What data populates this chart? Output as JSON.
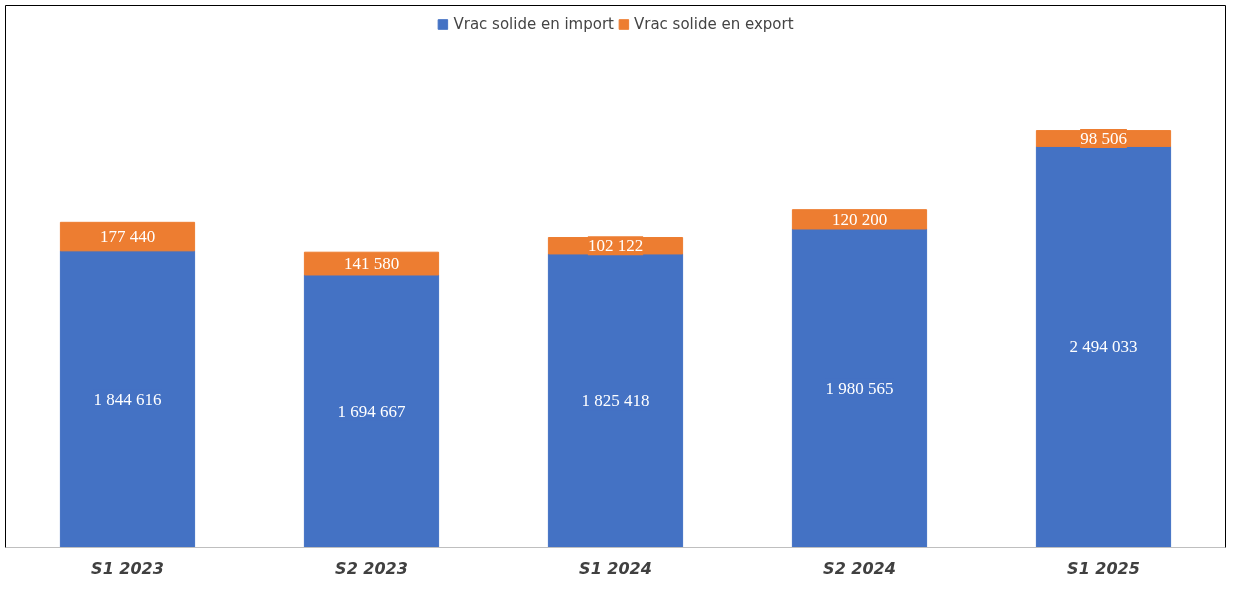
{
  "chart_data": {
    "type": "bar",
    "stacked": true,
    "categories": [
      "S1 2023",
      "S2 2023",
      "S1 2024",
      "S2 2024",
      "S1 2025"
    ],
    "series": [
      {
        "name": "Vrac solide en import",
        "color": "#4472c4",
        "values": [
          1844616,
          1694667,
          1825418,
          1980565,
          2494033
        ],
        "value_labels": [
          "1 844 616",
          "1 694 667",
          "1 825 418",
          "1 980 565",
          "2 494 033"
        ]
      },
      {
        "name": "Vrac solide en export",
        "color": "#ed7d31",
        "values": [
          177440,
          141580,
          102122,
          120200,
          98506
        ],
        "value_labels": [
          "177 440",
          "141 580",
          "102 122",
          "120 200",
          "98 506"
        ]
      }
    ],
    "legend": "top",
    "grid": false
  }
}
